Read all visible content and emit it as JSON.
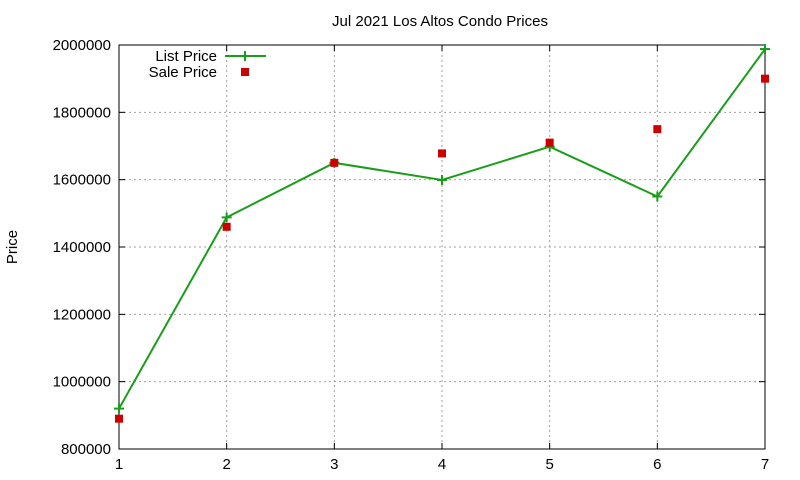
{
  "chart_data": {
    "type": "line",
    "title": "Jul 2021 Los Altos Condo Prices",
    "xlabel": "",
    "ylabel": "Price",
    "x": [
      1,
      2,
      3,
      4,
      5,
      6,
      7
    ],
    "xlim": [
      1,
      7
    ],
    "ylim": [
      800000,
      2000000
    ],
    "xticks": [
      "1",
      "2",
      "3",
      "4",
      "5",
      "6",
      "7"
    ],
    "yticks": [
      "800000",
      "1000000",
      "1200000",
      "1400000",
      "1600000",
      "1800000",
      "2000000"
    ],
    "grid": true,
    "legend_position": "top-left",
    "series": [
      {
        "name": "List Price",
        "style": "line-with-plus-markers",
        "color": "#1a9e1a",
        "values": [
          920000,
          1488000,
          1650000,
          1599000,
          1698000,
          1550000,
          1988000
        ]
      },
      {
        "name": "Sale Price",
        "style": "square-markers",
        "color": "#cc0000",
        "values": [
          890000,
          1460000,
          1650000,
          1678000,
          1710000,
          1750000,
          1900000
        ]
      }
    ]
  }
}
